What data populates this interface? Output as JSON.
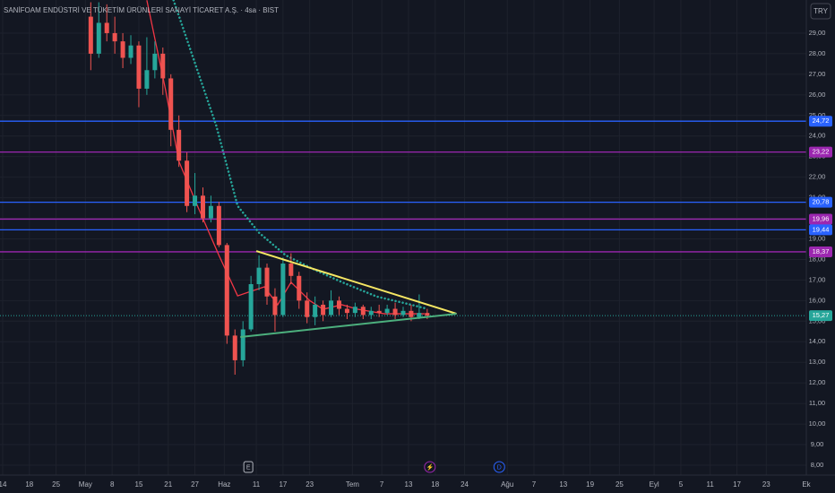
{
  "chart_data": {
    "type": "candlestick",
    "title": "SANİFOAM ENDÜSTRİ VE TÜKETİM ÜRÜNLERİ SANAYİ TİCARET A.Ş. · 4sa · BIST",
    "currency": "TRY",
    "up_color": "#26a69a",
    "down_color": "#ef5350",
    "grid": true,
    "x": [
      34,
      37,
      40,
      43,
      46,
      49,
      52,
      55,
      58,
      61,
      64,
      67,
      70,
      73,
      76,
      79,
      82,
      85,
      88,
      91,
      94,
      97,
      100,
      103,
      106,
      109,
      112,
      115,
      118,
      121,
      124,
      127,
      130,
      133,
      136,
      139,
      142,
      145,
      148,
      151,
      154,
      157,
      160
    ],
    "open": [
      29.8,
      28.0,
      29.5,
      29.0,
      28.6,
      27.8,
      28.4,
      26.3,
      27.2,
      28.0,
      26.8,
      24.3,
      22.8,
      20.6,
      21.1,
      20.0,
      20.6,
      18.7,
      14.3,
      13.1,
      14.6,
      16.8,
      17.6,
      16.2,
      15.3,
      17.8,
      17.2,
      16.0,
      15.2,
      15.8,
      15.3,
      16.0,
      15.6,
      15.4,
      15.7,
      15.3,
      15.5,
      15.4,
      15.6,
      15.3,
      15.5,
      15.2,
      15.4
    ],
    "high": [
      30.5,
      30.5,
      30.4,
      29.8,
      29.0,
      28.9,
      28.6,
      28.8,
      28.6,
      28.3,
      27.0,
      25.0,
      23.2,
      22.2,
      21.5,
      21.1,
      20.8,
      18.8,
      14.6,
      15.0,
      17.2,
      18.2,
      17.8,
      16.6,
      18.1,
      18.3,
      17.4,
      16.4,
      16.2,
      16.0,
      16.5,
      16.2,
      15.8,
      15.9,
      15.8,
      15.7,
      15.8,
      15.8,
      15.9,
      15.7,
      15.8,
      16.3,
      15.6
    ],
    "low": [
      27.2,
      27.8,
      28.6,
      28.0,
      27.3,
      27.5,
      25.4,
      26.0,
      26.8,
      26.0,
      23.5,
      22.5,
      20.3,
      20.2,
      19.8,
      19.8,
      18.6,
      13.9,
      12.4,
      12.8,
      14.5,
      16.5,
      15.8,
      14.5,
      15.2,
      16.8,
      15.6,
      14.9,
      14.8,
      15.0,
      15.2,
      15.3,
      15.1,
      15.2,
      15.1,
      15.1,
      15.2,
      15.3,
      15.1,
      15.2,
      15.0,
      15.1,
      15.1
    ],
    "close": [
      28.0,
      29.5,
      29.0,
      28.6,
      27.8,
      28.4,
      26.3,
      27.2,
      28.0,
      26.8,
      24.3,
      22.8,
      20.6,
      21.1,
      20.0,
      20.6,
      18.7,
      14.3,
      13.1,
      14.6,
      16.8,
      17.6,
      16.2,
      15.3,
      17.8,
      17.2,
      16.0,
      15.2,
      15.8,
      15.3,
      16.0,
      15.6,
      15.4,
      15.7,
      15.3,
      15.5,
      15.4,
      15.6,
      15.3,
      15.5,
      15.2,
      15.4,
      15.27
    ],
    "moving_averages": [
      {
        "color": "#f23645",
        "style": "solid",
        "x": [
          55,
          62,
          67,
          74,
          82,
          89,
          94,
          99,
          104,
          109,
          116,
          121,
          128,
          134,
          144,
          159
        ],
        "values": [
          30.6,
          26.25,
          22.77,
          20.59,
          18.2,
          16.23,
          16.45,
          16.67,
          15.8,
          16.89,
          16.0,
          15.58,
          15.8,
          15.58,
          15.36,
          15.36
        ]
      },
      {
        "color": "#26a69a",
        "style": "dotted",
        "x": [
          65,
          81,
          89,
          97,
          107,
          117,
          128,
          141,
          154,
          160
        ],
        "values": [
          30.6,
          24.5,
          20.6,
          19.3,
          18.2,
          17.55,
          16.9,
          16.2,
          15.8,
          15.6
        ]
      }
    ],
    "trendlines": [
      {
        "color": "#f5e663",
        "x": [
          96,
          171
        ],
        "values": [
          18.41,
          15.36
        ]
      },
      {
        "color": "#4caf7d",
        "x": [
          90,
          171
        ],
        "values": [
          14.23,
          15.36
        ]
      }
    ],
    "levels": [
      {
        "value": 24.72,
        "label": "24,72",
        "color": "#2962ff"
      },
      {
        "value": 23.22,
        "label": "23,22",
        "color": "#9c27b0"
      },
      {
        "value": 20.78,
        "label": "20,78",
        "color": "#2962ff"
      },
      {
        "value": 19.96,
        "label": "19,96",
        "color": "#9c27b0"
      },
      {
        "value": 19.44,
        "label": "19,44",
        "color": "#2962ff"
      },
      {
        "value": 18.37,
        "label": "18,37",
        "color": "#9c27b0"
      }
    ],
    "last_price": {
      "value": 15.27,
      "label": "15,27",
      "color": "#26a69a"
    },
    "events": [
      {
        "label": "E",
        "x": 93
      },
      {
        "label": "⚡",
        "x": 161
      },
      {
        "label": "D",
        "x": 187
      }
    ],
    "ylim": [
      7.52,
      30.61
    ],
    "yticks": [
      {
        "value": 8,
        "label": "8,00"
      },
      {
        "value": 9,
        "label": "9,00"
      },
      {
        "value": 10,
        "label": "10,00"
      },
      {
        "value": 11,
        "label": "11,00"
      },
      {
        "value": 12,
        "label": "12,00"
      },
      {
        "value": 13,
        "label": "13,00"
      },
      {
        "value": 14,
        "label": "14,00"
      },
      {
        "value": 15,
        "label": "15,00"
      },
      {
        "value": 16,
        "label": "16,00"
      },
      {
        "value": 17,
        "label": "17,00"
      },
      {
        "value": 18,
        "label": "18,00"
      },
      {
        "value": 19,
        "label": "19,00"
      },
      {
        "value": 20,
        "label": "20,00"
      },
      {
        "value": 21,
        "label": "21,00"
      },
      {
        "value": 22,
        "label": "22,00"
      },
      {
        "value": 23,
        "label": "23,00"
      },
      {
        "value": 24,
        "label": "24,00"
      },
      {
        "value": 25,
        "label": "25,00"
      },
      {
        "value": 26,
        "label": "26,00"
      },
      {
        "value": 27,
        "label": "27,00"
      },
      {
        "value": 28,
        "label": "28,00"
      },
      {
        "value": 29,
        "label": "29,00"
      }
    ],
    "xlim": [
      0,
      302
    ],
    "xticks": [
      {
        "value": 1,
        "label": "14"
      },
      {
        "value": 11,
        "label": "18"
      },
      {
        "value": 21,
        "label": "25"
      },
      {
        "value": 32,
        "label": "May"
      },
      {
        "value": 42,
        "label": "8"
      },
      {
        "value": 52,
        "label": "15"
      },
      {
        "value": 63,
        "label": "21"
      },
      {
        "value": 73,
        "label": "27"
      },
      {
        "value": 84,
        "label": "Haz"
      },
      {
        "value": 96,
        "label": "11"
      },
      {
        "value": 106,
        "label": "17"
      },
      {
        "value": 116,
        "label": "23"
      },
      {
        "value": 132,
        "label": "Tem"
      },
      {
        "value": 143,
        "label": "7"
      },
      {
        "value": 153,
        "label": "13"
      },
      {
        "value": 163,
        "label": "18"
      },
      {
        "value": 174,
        "label": "24"
      },
      {
        "value": 190,
        "label": "Ağu"
      },
      {
        "value": 200,
        "label": "7"
      },
      {
        "value": 211,
        "label": "13"
      },
      {
        "value": 221,
        "label": "19"
      },
      {
        "value": 232,
        "label": "25"
      },
      {
        "value": 245,
        "label": "Eyl"
      },
      {
        "value": 255,
        "label": "5"
      },
      {
        "value": 266,
        "label": "11"
      },
      {
        "value": 276,
        "label": "17"
      },
      {
        "value": 287,
        "label": "23"
      },
      {
        "value": 302,
        "label": "Ek"
      }
    ]
  }
}
